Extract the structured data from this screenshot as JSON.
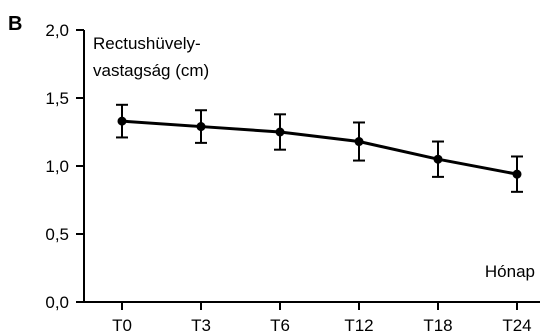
{
  "panel_label": "B",
  "chart_data": {
    "type": "line",
    "ylabel_lines": [
      "Rectushüvely-",
      "vastagság (cm)"
    ],
    "xlabel": "Hónap",
    "categories": [
      "T0",
      "T3",
      "T6",
      "T12",
      "T18",
      "T24"
    ],
    "series": [
      {
        "values": [
          1.33,
          1.29,
          1.25,
          1.18,
          1.05,
          0.94
        ],
        "error": [
          0.12,
          0.12,
          0.13,
          0.14,
          0.13,
          0.13
        ]
      }
    ],
    "ylim": [
      0,
      2.0
    ],
    "y_ticks": [
      "0,0",
      "0,5",
      "1,0",
      "1,5",
      "2,0"
    ],
    "grid": false,
    "colors": {
      "line": "#000000",
      "axis": "#000000"
    }
  }
}
